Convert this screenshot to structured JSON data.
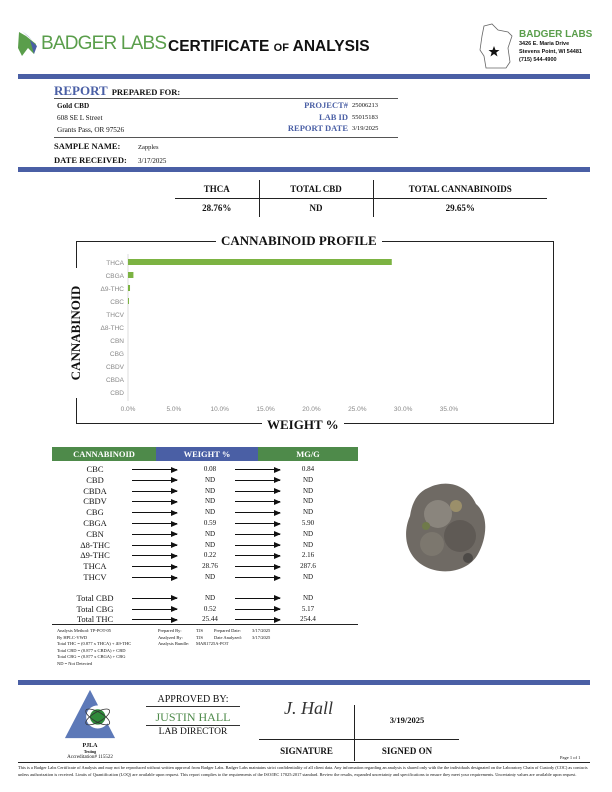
{
  "header": {
    "logo_text": "BADGER LABS",
    "title_main": "CERTIFICATE",
    "title_of": "OF",
    "title_end": "ANALYSIS",
    "lab_name": "BADGER LABS",
    "lab_address1": "3426 E. Maria Drive",
    "lab_address2": "Stevens Point, WI 54481",
    "lab_phone": "(715) 544-4900"
  },
  "report": {
    "report_word": "REPORT",
    "prepared_for": "PREPARED FOR:",
    "client": "Gold CBD",
    "address1": "608 SE L Street",
    "address2": "Grants Pass, OR 97526",
    "project_label": "PROJECT#",
    "project": "25006213",
    "labid_label": "LAB ID",
    "labid": "55015183",
    "date_label": "REPORT DATE",
    "date": "3/19/2025",
    "sample_label": "SAMPLE NAME:",
    "sample": "Zapples",
    "received_label": "DATE RECEIVED:",
    "received": "3/17/2025"
  },
  "summary": {
    "headers": [
      "THCA",
      "TOTAL CBD",
      "TOTAL CANNABINOIDS"
    ],
    "values": [
      "28.76%",
      "ND",
      "29.65%"
    ]
  },
  "chart_data": {
    "type": "bar",
    "orientation": "horizontal",
    "title": "CANNABINOID PROFILE",
    "xlabel": "WEIGHT %",
    "ylabel": "CANNABINOID",
    "categories": [
      "THCA",
      "CBGA",
      "Δ9-THC",
      "CBC",
      "THCV",
      "Δ8-THC",
      "CBN",
      "CBG",
      "CBDV",
      "CBDA",
      "CBD"
    ],
    "values": [
      28.76,
      0.59,
      0.22,
      0.08,
      0,
      0,
      0,
      0,
      0,
      0,
      0
    ],
    "xlim": [
      0,
      35
    ],
    "xticks": [
      "0.0%",
      "5.0%",
      "10.0%",
      "15.0%",
      "20.0%",
      "25.0%",
      "30.0%",
      "35.0%"
    ],
    "grid": false,
    "color": "#7cb342"
  },
  "results": {
    "headers": [
      "CANNABINOID",
      "WEIGHT %",
      "MG/G"
    ],
    "header_colors": [
      "#4e8a4a",
      "#4a5fa5",
      "#4e8a4a"
    ],
    "rows": [
      [
        "CBC",
        "0.08",
        "0.84"
      ],
      [
        "CBD",
        "ND",
        "ND"
      ],
      [
        "CBDA",
        "ND",
        "ND"
      ],
      [
        "CBDV",
        "ND",
        "ND"
      ],
      [
        "CBG",
        "ND",
        "ND"
      ],
      [
        "CBGA",
        "0.59",
        "5.90"
      ],
      [
        "CBN",
        "ND",
        "ND"
      ],
      [
        "Δ8-THC",
        "ND",
        "ND"
      ],
      [
        "Δ9-THC",
        "0.22",
        "2.16"
      ],
      [
        "THCA",
        "28.76",
        "287.6"
      ],
      [
        "THCV",
        "ND",
        "ND"
      ]
    ],
    "totals": [
      [
        "Total CBD",
        "ND",
        "ND"
      ],
      [
        "Total CBG",
        "0.52",
        "5.17"
      ],
      [
        "Total THC",
        "25.44",
        "254.4"
      ]
    ]
  },
  "notes": {
    "lines": [
      "Analysis Method: TP-POT-05",
      "By HPLC-VWD",
      "Total THC = (0.877 x THCA) + Δ9-THC",
      "Total CBD = (0.877 x CBDA) + CBD",
      "Total CBG = (0.877 x CBGA) + CBG",
      "ND = Not Detected"
    ],
    "prepared_by_label": "Prepared By:",
    "prepared_by": "TJS",
    "prepared_date_label": "Prepared Date:",
    "prepared_date": "3/17/2025",
    "analyzed_by_label": "Analyzed By:",
    "analyzed_by": "TJS",
    "date_analyzed_label": "Date Analyzed:",
    "date_analyzed": "3/17/2025",
    "bundle_label": "Analysis Bundle:",
    "bundle": "MAR1725A-POT"
  },
  "footer": {
    "pjla": "PJLA",
    "pjla_sub": "Testing",
    "accreditation": "Accreditation# 115522",
    "approved_by": "APPROVED BY:",
    "approver": "JUSTIN HALL",
    "approver_title": "LAB DIRECTOR",
    "signature_image": "J. Hall",
    "signature_label": "SIGNATURE",
    "signed_date": "3/19/2025",
    "signed_on_label": "SIGNED ON",
    "page": "Page 1 of 1",
    "disclaimer": "This is a Badger Labs Certificate of Analysis and may not be reproduced without written approval from Badger Labs. Badger Labs maintains strict confidentiality of all client data. Any information regarding an analysis is shared only with the the individuals designated on the Laboratory Chain of Custody (COC) as contacts unless authorization is received. Limits of Quantification (LOQ) are available upon request. This report complies to the requirements of the ISO/IEC 17025:2017 standard. Review the results, expanded uncertainty and specifications to ensure they meet your requirements. Uncertainty values are available upon request."
  }
}
